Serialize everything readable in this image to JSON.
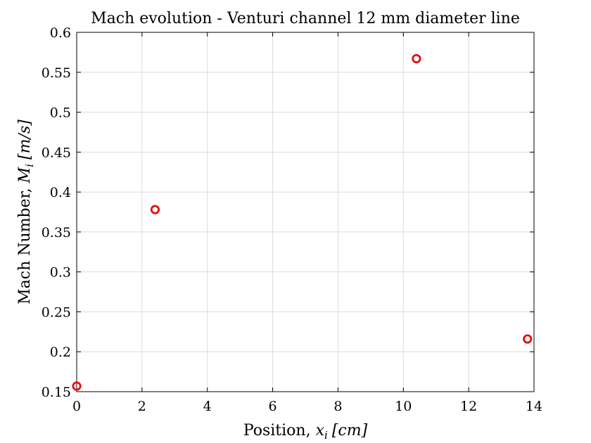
{
  "chart_data": {
    "type": "scatter",
    "title": "Mach evolution - Venturi channel 12 mm diameter line",
    "xlabel_text": "Position, ",
    "xlabel_math_var": "x",
    "xlabel_math_sub": "i",
    "xlabel_unit": "[cm]",
    "ylabel_text": "Mach Number, ",
    "ylabel_math_var": "M",
    "ylabel_math_sub": "i",
    "ylabel_unit": "[m/s]",
    "xlim": [
      0,
      14
    ],
    "ylim": [
      0.15,
      0.6
    ],
    "xticks": [
      0,
      2,
      4,
      6,
      8,
      10,
      12,
      14
    ],
    "xtick_labels": [
      "0",
      "2",
      "4",
      "6",
      "8",
      "10",
      "12",
      "14"
    ],
    "yticks": [
      0.15,
      0.2,
      0.25,
      0.3,
      0.35,
      0.4,
      0.45,
      0.5,
      0.55,
      0.6
    ],
    "ytick_labels": [
      "0.15",
      "0.2",
      "0.25",
      "0.3",
      "0.35",
      "0.4",
      "0.45",
      "0.5",
      "0.55",
      "0.6"
    ],
    "grid": true,
    "marker": "circle",
    "color": "#e01010",
    "series": [
      {
        "x": [
          0,
          2.4,
          10.4,
          13.8
        ],
        "y": [
          0.157,
          0.378,
          0.567,
          0.216
        ]
      }
    ]
  }
}
